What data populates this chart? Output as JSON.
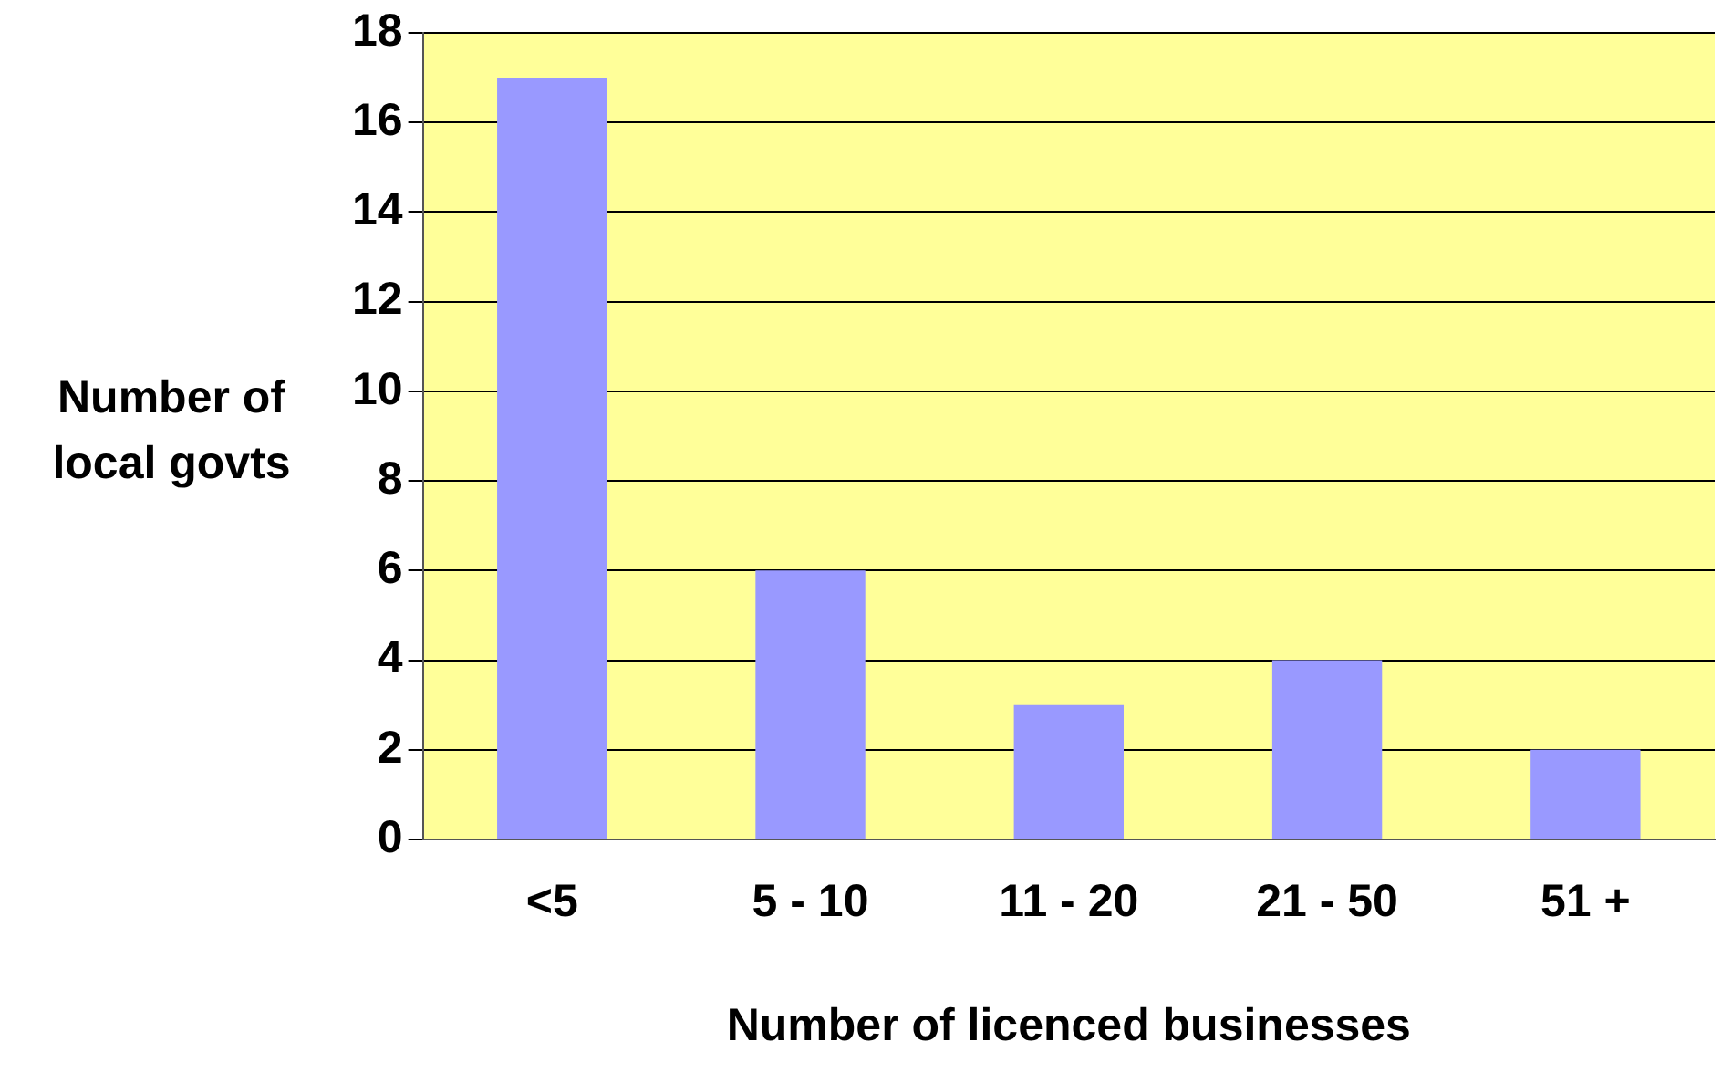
{
  "chart_data": {
    "type": "bar",
    "xlabel": "Number of licenced businesses",
    "ylabel": "Number of local govts",
    "categories": [
      "<5",
      "5 - 10",
      "11 - 20",
      "21 - 50",
      "51 +"
    ],
    "values": [
      17,
      6,
      3,
      4,
      2
    ],
    "color": "#9999ff",
    "ylim": [
      0,
      18
    ],
    "yticks": [
      0,
      2,
      4,
      6,
      8,
      10,
      12,
      14,
      16,
      18
    ],
    "grid": "y",
    "legend": false
  }
}
